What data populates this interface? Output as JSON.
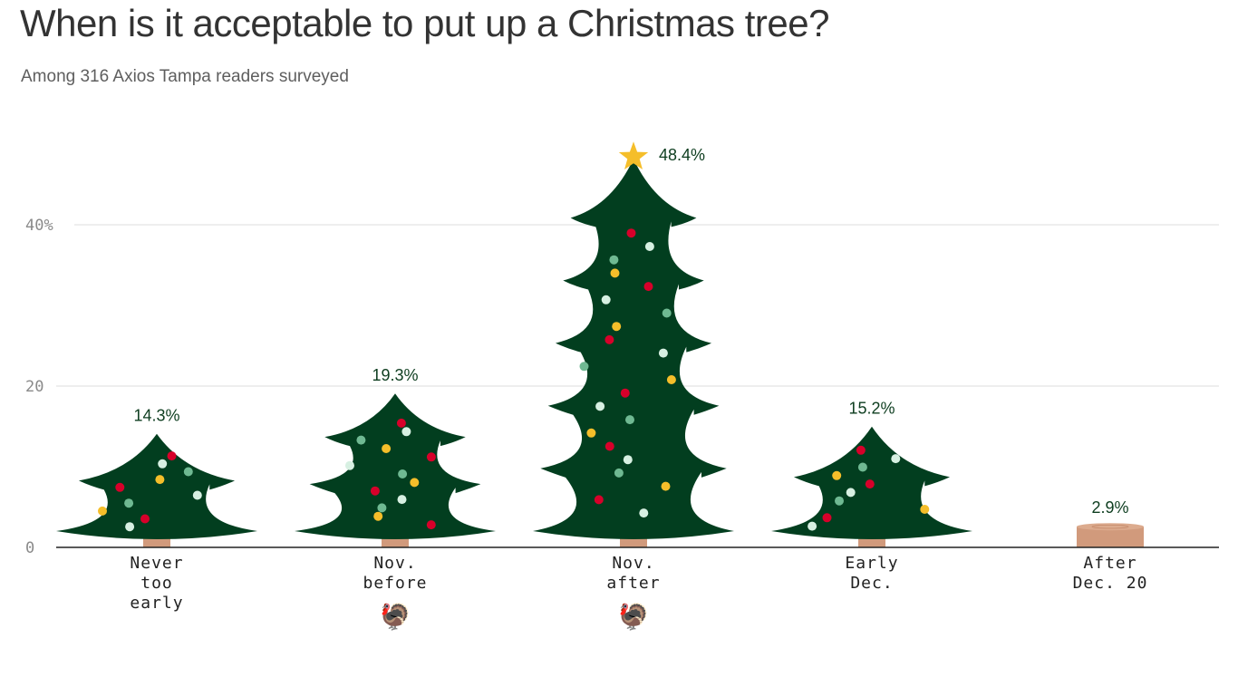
{
  "header": {
    "title": "When is it acceptable to put up a Christmas tree?",
    "subtitle": "Among 316 Axios Tampa readers surveyed"
  },
  "colors": {
    "tree": "#023e1f",
    "trunk": "#d19a7c",
    "star": "#f5be2a",
    "ornament_red": "#d7002a",
    "ornament_yellow": "#f5be2a",
    "ornament_mint": "#6fb992",
    "ornament_white": "#d7f0e2",
    "value_label": "#0d3d1f",
    "grid": "#e3e3e3",
    "axis": "#222222"
  },
  "chart_data": {
    "type": "bar",
    "title": "When is it acceptable to put up a Christmas tree?",
    "subtitle": "Among 316 Axios Tampa readers surveyed",
    "categories": [
      "Never too early",
      "Nov. before Thanksgiving",
      "Nov. after Thanksgiving",
      "Early Dec.",
      "After Dec. 20"
    ],
    "category_label_lines": [
      [
        "Never",
        "too",
        "early"
      ],
      [
        "Nov.",
        "before"
      ],
      [
        "Nov.",
        "after"
      ],
      [
        "Early",
        "Dec."
      ],
      [
        "After",
        "Dec. 20"
      ]
    ],
    "category_icons": [
      "",
      "turkey-icon",
      "turkey-icon",
      "",
      ""
    ],
    "values": [
      14.3,
      19.3,
      48.4,
      15.2,
      2.9
    ],
    "value_labels": [
      "14.3%",
      "19.3%",
      "48.4%",
      "15.2%",
      "2.9%"
    ],
    "bar_style": [
      "tree",
      "tree",
      "tree-with-star",
      "tree",
      "stump"
    ],
    "xlabel": "",
    "ylabel": "",
    "ylim": [
      0,
      50
    ],
    "yticks": [
      0,
      20,
      40
    ],
    "ytick_labels": [
      "0",
      "20",
      "40%"
    ],
    "grid": true,
    "legend": null
  },
  "turkey_glyph": "🦃",
  "star_glyph": "★"
}
